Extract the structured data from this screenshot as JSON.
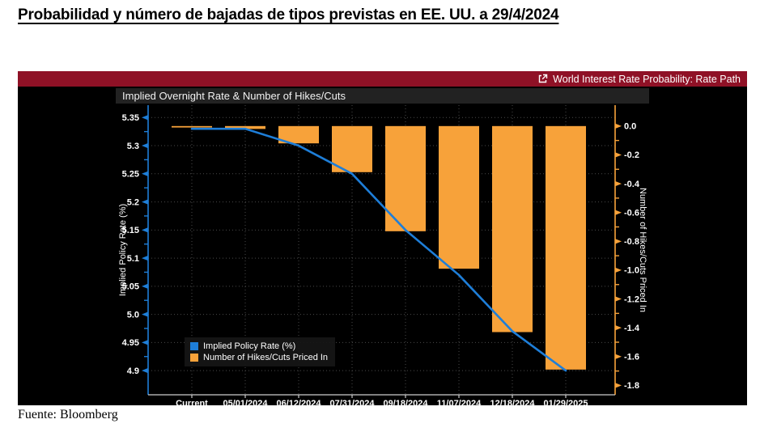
{
  "page": {
    "title": "Probabilidad y número de bajadas de tipos previstas en EE. UU. a 29/4/2024",
    "source": "Fuente: Bloomberg",
    "background": "#ffffff"
  },
  "terminal": {
    "header_label": "World Interest Rate Probability: Rate Path",
    "header_icon": "open-in-new-icon",
    "header_bg": "#8F1126",
    "panel_bg": "#000000"
  },
  "chart_data": {
    "type": "combo",
    "title": "Implied Overnight Rate & Number of Hikes/Cuts",
    "plot_bg": "#000000",
    "grid": true,
    "grid_color": "#4a4a4a",
    "legend_position": "inside-bottom-left",
    "categories": [
      "Current",
      "05/01/2024",
      "06/12/2024",
      "07/31/2024",
      "09/18/2024",
      "11/07/2024",
      "12/18/2024",
      "01/29/2025"
    ],
    "series": [
      {
        "name": "Implied Policy Rate (%)",
        "type": "line",
        "axis": "left",
        "color": "#1E7ED8",
        "values": [
          5.33,
          5.33,
          5.3,
          5.25,
          5.15,
          5.07,
          4.97,
          4.9
        ]
      },
      {
        "name": "Number of Hikes/Cuts Priced In",
        "type": "bar",
        "axis": "right",
        "color": "#F7A23A",
        "values": [
          -0.01,
          -0.02,
          -0.12,
          -0.32,
          -0.73,
          -0.99,
          -1.43,
          -1.69
        ]
      }
    ],
    "left_axis": {
      "label": "Implied Policy Rate (%)",
      "color": "#1E7ED8",
      "range": [
        4.857,
        5.372
      ],
      "ticks": [
        {
          "v": 5.35,
          "label": "5.35"
        },
        {
          "v": 5.3,
          "label": "5.3"
        },
        {
          "v": 5.25,
          "label": "5.25"
        },
        {
          "v": 5.2,
          "label": "5.2"
        },
        {
          "v": 5.15,
          "label": "5.15"
        },
        {
          "v": 5.1,
          "label": "5.1"
        },
        {
          "v": 5.05,
          "label": "5.05"
        },
        {
          "v": 5.0,
          "label": "5.0"
        },
        {
          "v": 4.95,
          "label": "4.95"
        },
        {
          "v": 4.9,
          "label": "4.9"
        }
      ]
    },
    "right_axis": {
      "label": "Number of Hikes/Cuts Priced In",
      "color": "#F7A23A",
      "range": [
        -1.865,
        0.145
      ],
      "ticks": [
        {
          "v": 0.0,
          "label": "0.0"
        },
        {
          "v": -0.2,
          "label": "-0.2"
        },
        {
          "v": -0.4,
          "label": "-0.4"
        },
        {
          "v": -0.6,
          "label": "-0.6"
        },
        {
          "v": -0.8,
          "label": "-0.8"
        },
        {
          "v": -1.0,
          "label": "-1.0"
        },
        {
          "v": -1.2,
          "label": "-1.2"
        },
        {
          "v": -1.4,
          "label": "-1.4"
        },
        {
          "v": -1.6,
          "label": "-1.6"
        },
        {
          "v": -1.8,
          "label": "-1.8"
        }
      ]
    },
    "x_axis_color": "#cccccc",
    "tick_label_color": "#ffffff"
  }
}
